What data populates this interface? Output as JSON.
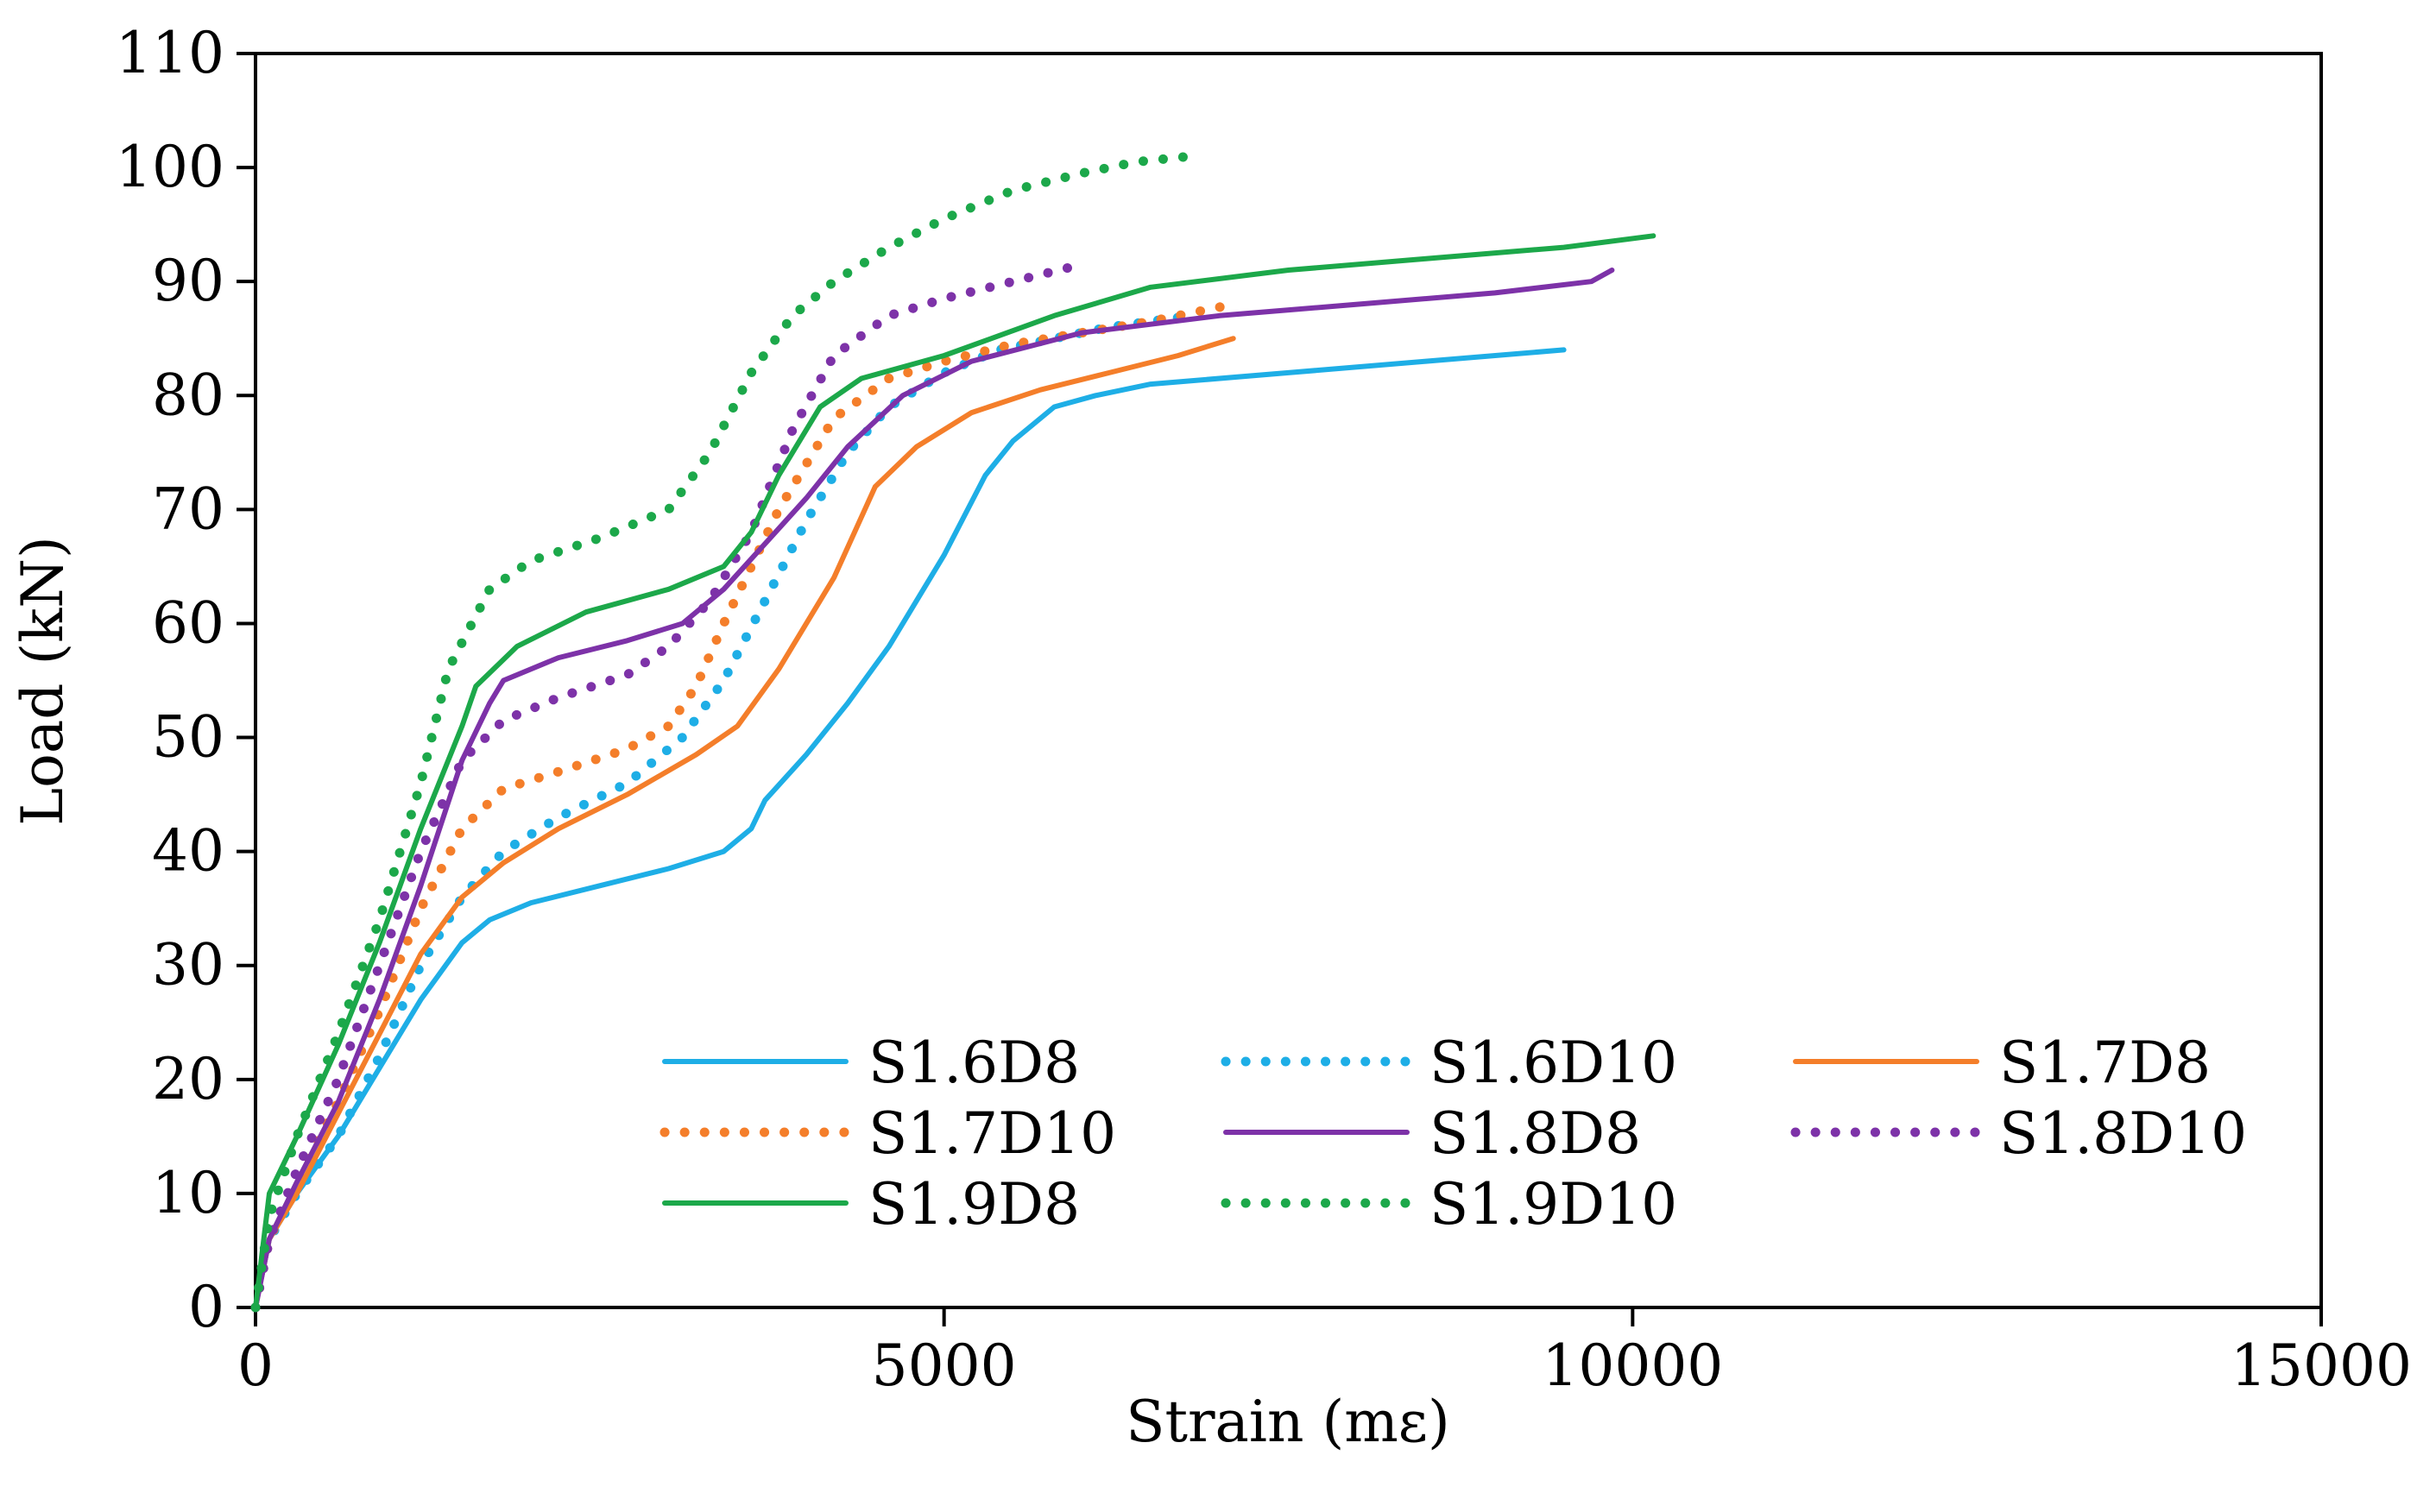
{
  "chart_data": {
    "type": "line",
    "title": "",
    "xlabel": "Strain (mε)",
    "ylabel": "Load (kN)",
    "xlim": [
      0,
      15000
    ],
    "ylim": [
      0,
      110
    ],
    "xticks": [
      0,
      5000,
      10000,
      15000
    ],
    "yticks": [
      0,
      10,
      20,
      30,
      40,
      50,
      60,
      70,
      80,
      90,
      100,
      110
    ],
    "xtick_labels": [
      "0",
      "5000",
      "10000",
      "15000"
    ],
    "ytick_labels": [
      "0",
      "10",
      "20",
      "30",
      "40",
      "50",
      "60",
      "70",
      "80",
      "90",
      "100",
      "110"
    ],
    "grid": false,
    "legend_position": "bottom-right",
    "series": [
      {
        "name": "S1.6D8",
        "color": "#1EAEE6",
        "style": "solid",
        "x": [
          0,
          100,
          300,
          600,
          900,
          1200,
          1500,
          1700,
          2000,
          2500,
          3000,
          3400,
          3600,
          3700,
          4000,
          4300,
          4600,
          5000,
          5300,
          5500,
          5800,
          6100,
          6500,
          7500,
          8500,
          9500
        ],
        "y": [
          0,
          6,
          10,
          15,
          21,
          27,
          32,
          34,
          35.5,
          37,
          38.5,
          40,
          42,
          44.5,
          48.5,
          53,
          58,
          66,
          73,
          76,
          79,
          80,
          81,
          82,
          83,
          84
        ]
      },
      {
        "name": "S1.6D10",
        "color": "#1EAEE6",
        "style": "dotted",
        "x": [
          0,
          100,
          300,
          600,
          900,
          1200,
          1500,
          1800,
          2200,
          2700,
          3100,
          3400,
          3700,
          4000,
          4300,
          4600,
          5000,
          5400,
          5800,
          6200,
          6800
        ],
        "y": [
          0,
          6,
          10,
          15,
          22,
          30,
          36,
          40,
          43,
          46,
          50,
          55,
          62,
          69,
          75,
          79,
          82,
          84,
          85,
          86,
          87
        ]
      },
      {
        "name": "S1.7D8",
        "color": "#F47E2A",
        "style": "solid",
        "x": [
          0,
          100,
          300,
          600,
          900,
          1200,
          1500,
          1800,
          2200,
          2700,
          3200,
          3500,
          3800,
          4200,
          4500,
          4800,
          5200,
          5700,
          6200,
          6700,
          7100
        ],
        "y": [
          0,
          6,
          10,
          17,
          24,
          31,
          36,
          39,
          42,
          45,
          48.5,
          51,
          56,
          64,
          72,
          75.5,
          78.5,
          80.5,
          82,
          83.5,
          85
        ]
      },
      {
        "name": "S1.7D10",
        "color": "#F47E2A",
        "style": "dotted",
        "x": [
          0,
          100,
          300,
          600,
          900,
          1200,
          1500,
          1800,
          2200,
          2700,
          3000,
          3200,
          3400,
          3800,
          4200,
          4600,
          5000,
          5500,
          6000,
          6500,
          7100
        ],
        "y": [
          0,
          6,
          11,
          18,
          26,
          35,
          42,
          45.5,
          47,
          49,
          51,
          54.5,
          60,
          70,
          78,
          81.5,
          83,
          84.5,
          85.5,
          86.5,
          88
        ]
      },
      {
        "name": "S1.8D8",
        "color": "#7D32A8",
        "style": "solid",
        "x": [
          0,
          100,
          300,
          600,
          900,
          1200,
          1500,
          1700,
          1800,
          2200,
          2700,
          3100,
          3400,
          3700,
          4000,
          4300,
          4700,
          5200,
          6000,
          7000,
          8000,
          9000,
          9700,
          9850
        ],
        "y": [
          0,
          6,
          11,
          18,
          27,
          37,
          48,
          53,
          55,
          57,
          58.5,
          60,
          63,
          67,
          71,
          75.5,
          80,
          83,
          85.5,
          87,
          88,
          89,
          90,
          91
        ]
      },
      {
        "name": "S1.8D10",
        "color": "#7D32A8",
        "style": "dotted",
        "x": [
          0,
          100,
          300,
          600,
          900,
          1200,
          1500,
          1800,
          2200,
          2700,
          3000,
          3300,
          3600,
          3900,
          4200,
          4600,
          5000,
          5500,
          6000
        ],
        "y": [
          0,
          6,
          12,
          20,
          30,
          40,
          48,
          51.5,
          53.5,
          55.5,
          58,
          62,
          68,
          77,
          83.5,
          87,
          88.5,
          90,
          91.5
        ]
      },
      {
        "name": "S1.9D8",
        "color": "#1CA84A",
        "style": "solid",
        "x": [
          0,
          100,
          300,
          600,
          900,
          1200,
          1500,
          1600,
          1900,
          2400,
          3000,
          3400,
          3600,
          3800,
          4100,
          4400,
          5000,
          5800,
          6500,
          7500,
          8500,
          9500,
          10150
        ],
        "y": [
          0,
          10,
          15,
          23,
          32,
          42,
          51,
          54.5,
          58,
          61,
          63,
          65,
          68,
          73,
          79,
          81.5,
          83.5,
          87,
          89.5,
          91,
          92,
          93,
          94
        ]
      },
      {
        "name": "S1.9D10",
        "color": "#1CA84A",
        "style": "dotted",
        "x": [
          0,
          100,
          300,
          600,
          900,
          1200,
          1400,
          1700,
          2000,
          2500,
          3000,
          3300,
          3600,
          3900,
          4200,
          4600,
          5000,
          5500,
          6000,
          6400,
          6800
        ],
        "y": [
          0,
          8,
          15,
          24,
          34,
          46,
          56,
          63,
          65.5,
          67.5,
          70,
          75,
          82,
          87,
          90,
          93,
          95.5,
          98,
          99.5,
          100.5,
          101
        ]
      }
    ]
  }
}
